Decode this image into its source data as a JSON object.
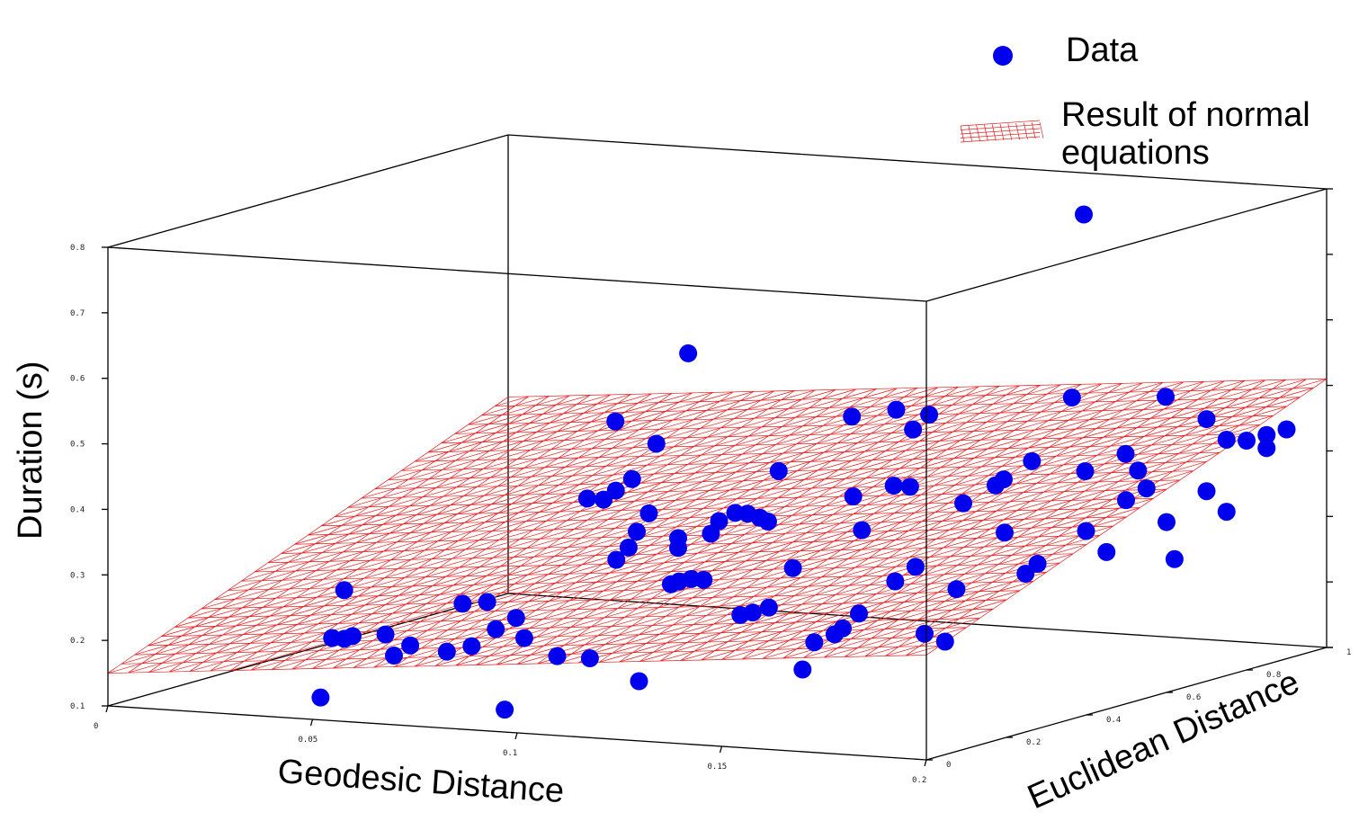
{
  "chart_data": {
    "type": "scatter",
    "xlabel": "Geodesic Distance",
    "ylabel": "Euclidean Distance",
    "zlabel": "Duration (s)",
    "xlim": [
      0,
      0.2
    ],
    "ylim": [
      0,
      1
    ],
    "zlim": [
      0.1,
      0.8
    ],
    "x_ticks": [
      "0",
      "0.05",
      "0.1",
      "0.15",
      "0.2"
    ],
    "y_ticks": [
      "0",
      "0.2",
      "0.4",
      "0.6",
      "0.8",
      "1"
    ],
    "z_ticks": [
      "0.1",
      "0.2",
      "0.3",
      "0.4",
      "0.5",
      "0.6",
      "0.7",
      "0.8"
    ],
    "grid": false,
    "legend_position": "top-right",
    "legend": [
      {
        "label": "Data",
        "kind": "marker",
        "color": "#0000ee"
      },
      {
        "label": "Result of normal\nequations",
        "kind": "surface",
        "color": "#e31a1c"
      }
    ],
    "plane": {
      "b0": 0.15,
      "b_geodesic": 0.55,
      "b_euclidean": 0.25
    },
    "points": [
      {
        "x": 0.045,
        "y": 0.1,
        "z": 0.205
      },
      {
        "x": 0.048,
        "y": 0.1,
        "z": 0.205
      },
      {
        "x": 0.05,
        "y": 0.1,
        "z": 0.21
      },
      {
        "x": 0.046,
        "y": 0.12,
        "z": 0.275
      },
      {
        "x": 0.06,
        "y": 0.08,
        "z": 0.22
      },
      {
        "x": 0.065,
        "y": 0.05,
        "z": 0.195
      },
      {
        "x": 0.068,
        "y": 0.06,
        "z": 0.21
      },
      {
        "x": 0.075,
        "y": 0.08,
        "z": 0.2
      },
      {
        "x": 0.072,
        "y": 0.15,
        "z": 0.26
      },
      {
        "x": 0.078,
        "y": 0.15,
        "z": 0.265
      },
      {
        "x": 0.083,
        "y": 0.06,
        "z": 0.215
      },
      {
        "x": 0.085,
        "y": 0.1,
        "z": 0.235
      },
      {
        "x": 0.088,
        "y": 0.12,
        "z": 0.25
      },
      {
        "x": 0.09,
        "y": 0.12,
        "z": 0.22
      },
      {
        "x": 0.09,
        "y": 0.35,
        "z": 0.3
      },
      {
        "x": 0.093,
        "y": 0.35,
        "z": 0.32
      },
      {
        "x": 0.095,
        "y": 0.35,
        "z": 0.345
      },
      {
        "x": 0.096,
        "y": 0.37,
        "z": 0.37
      },
      {
        "x": 0.078,
        "y": 0.4,
        "z": 0.38
      },
      {
        "x": 0.082,
        "y": 0.4,
        "z": 0.38
      },
      {
        "x": 0.085,
        "y": 0.4,
        "z": 0.395
      },
      {
        "x": 0.087,
        "y": 0.42,
        "z": 0.41
      },
      {
        "x": 0.08,
        "y": 0.45,
        "z": 0.49
      },
      {
        "x": 0.09,
        "y": 0.45,
        "z": 0.46
      },
      {
        "x": 0.088,
        "y": 0.55,
        "z": 0.58
      },
      {
        "x": 0.1,
        "y": 0.1,
        "z": 0.2
      },
      {
        "x": 0.108,
        "y": 0.1,
        "z": 0.2
      },
      {
        "x": 0.11,
        "y": 0.3,
        "z": 0.35
      },
      {
        "x": 0.11,
        "y": 0.3,
        "z": 0.335
      },
      {
        "x": 0.115,
        "y": 0.5,
        "z": 0.42
      },
      {
        "x": 0.118,
        "y": 0.3,
        "z": 0.36
      },
      {
        "x": 0.12,
        "y": 0.3,
        "z": 0.38
      },
      {
        "x": 0.122,
        "y": 0.32,
        "z": 0.39
      },
      {
        "x": 0.125,
        "y": 0.32,
        "z": 0.39
      },
      {
        "x": 0.128,
        "y": 0.32,
        "z": 0.385
      },
      {
        "x": 0.13,
        "y": 0.32,
        "z": 0.38
      },
      {
        "x": 0.118,
        "y": 0.2,
        "z": 0.3
      },
      {
        "x": 0.12,
        "y": 0.2,
        "z": 0.305
      },
      {
        "x": 0.123,
        "y": 0.2,
        "z": 0.31
      },
      {
        "x": 0.126,
        "y": 0.2,
        "z": 0.31
      },
      {
        "x": 0.128,
        "y": 0.55,
        "z": 0.5
      },
      {
        "x": 0.132,
        "y": 0.62,
        "z": 0.5
      },
      {
        "x": 0.135,
        "y": 0.2,
        "z": 0.26
      },
      {
        "x": 0.138,
        "y": 0.2,
        "z": 0.265
      },
      {
        "x": 0.14,
        "y": 0.22,
        "z": 0.27
      },
      {
        "x": 0.14,
        "y": 0.28,
        "z": 0.32
      },
      {
        "x": 0.143,
        "y": 0.4,
        "z": 0.41
      },
      {
        "x": 0.14,
        "y": 0.58,
        "z": 0.48
      },
      {
        "x": 0.142,
        "y": 0.6,
        "z": 0.5
      },
      {
        "x": 0.148,
        "y": 0.45,
        "z": 0.42
      },
      {
        "x": 0.152,
        "y": 0.45,
        "z": 0.42
      },
      {
        "x": 0.15,
        "y": 0.35,
        "z": 0.37
      },
      {
        "x": 0.155,
        "y": 0.18,
        "z": 0.23
      },
      {
        "x": 0.158,
        "y": 0.2,
        "z": 0.24
      },
      {
        "x": 0.16,
        "y": 0.2,
        "z": 0.25
      },
      {
        "x": 0.162,
        "y": 0.22,
        "z": 0.27
      },
      {
        "x": 0.158,
        "y": 0.12,
        "z": 0.2
      },
      {
        "x": 0.165,
        "y": 0.28,
        "z": 0.31
      },
      {
        "x": 0.168,
        "y": 0.3,
        "z": 0.33
      },
      {
        "x": 0.165,
        "y": 0.45,
        "z": 0.4
      },
      {
        "x": 0.168,
        "y": 0.5,
        "z": 0.42
      },
      {
        "x": 0.17,
        "y": 0.5,
        "z": 0.43
      },
      {
        "x": 0.172,
        "y": 0.55,
        "z": 0.45
      },
      {
        "x": 0.172,
        "y": 0.65,
        "z": 0.53
      },
      {
        "x": 0.178,
        "y": 0.3,
        "z": 0.3
      },
      {
        "x": 0.18,
        "y": 0.4,
        "z": 0.37
      },
      {
        "x": 0.18,
        "y": 0.2,
        "z": 0.25
      },
      {
        "x": 0.185,
        "y": 0.2,
        "z": 0.24
      },
      {
        "x": 0.19,
        "y": 0.35,
        "z": 0.32
      },
      {
        "x": 0.19,
        "y": 0.38,
        "z": 0.33
      },
      {
        "x": 0.185,
        "y": 0.55,
        "z": 0.44
      },
      {
        "x": 0.19,
        "y": 0.6,
        "z": 0.46
      },
      {
        "x": 0.195,
        "y": 0.58,
        "z": 0.44
      },
      {
        "x": 0.19,
        "y": 0.7,
        "z": 0.53
      },
      {
        "x": 0.195,
        "y": 0.45,
        "z": 0.37
      },
      {
        "x": 0.195,
        "y": 0.55,
        "z": 0.4
      },
      {
        "x": 0.2,
        "y": 0.55,
        "z": 0.42
      },
      {
        "x": 0.2,
        "y": 0.7,
        "z": 0.5
      },
      {
        "x": 0.2,
        "y": 0.45,
        "z": 0.34
      },
      {
        "x": 0.2,
        "y": 0.75,
        "z": 0.46
      },
      {
        "x": 0.2,
        "y": 0.8,
        "z": 0.45
      },
      {
        "x": 0.2,
        "y": 0.85,
        "z": 0.43
      },
      {
        "x": 0.2,
        "y": 0.85,
        "z": 0.45
      },
      {
        "x": 0.2,
        "y": 0.7,
        "z": 0.39
      },
      {
        "x": 0.2,
        "y": 0.75,
        "z": 0.35
      },
      {
        "x": 0.2,
        "y": 0.9,
        "z": 0.45
      },
      {
        "x": 0.2,
        "y": 0.6,
        "z": 0.36
      },
      {
        "x": 0.2,
        "y": 0.62,
        "z": 0.3
      },
      {
        "x": 0.17,
        "y": 0.7,
        "z": 0.8
      },
      {
        "x": 0.05,
        "y": 0.02,
        "z": 0.13
      },
      {
        "x": 0.095,
        "y": 0.02,
        "z": 0.13
      },
      {
        "x": 0.12,
        "y": 0.1,
        "z": 0.17
      }
    ]
  }
}
